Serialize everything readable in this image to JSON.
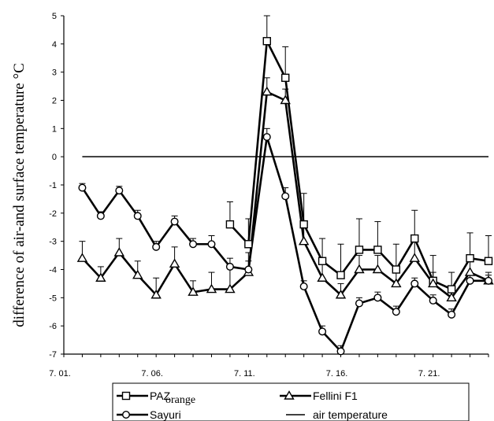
{
  "chart_data": {
    "type": "line",
    "xlabel": "",
    "ylabel": "difference of air-and surface temperature °C",
    "ylim": [
      -7,
      5
    ],
    "yticks": [
      "5",
      "4",
      "3",
      "2",
      "1",
      "0",
      "-1",
      "-2",
      "-3",
      "-4",
      "-5",
      "-6",
      "-7"
    ],
    "x_range": [
      "7.01",
      "7.24"
    ],
    "xticks": [
      {
        "label": "7. 01.",
        "x": "7.01"
      },
      {
        "label": "7. 06.",
        "x": "7.06"
      },
      {
        "label": "7. 11.",
        "x": "7.11"
      },
      {
        "label": "7. 16.",
        "x": "7.16"
      },
      {
        "label": "7. 21.",
        "x": "7.21"
      }
    ],
    "grid": false,
    "legend": "bottom",
    "series": [
      {
        "name": "PAZ",
        "name_note": "orange",
        "marker": "square",
        "x": [
          "7.10",
          "7.11",
          "7.12",
          "7.13",
          "7.14",
          "7.15",
          "7.16",
          "7.17",
          "7.18",
          "7.19",
          "7.20",
          "7.21",
          "7.22",
          "7.23",
          "7.24"
        ],
        "y": [
          -2.4,
          -3.1,
          4.1,
          2.8,
          -2.4,
          -3.7,
          -4.2,
          -3.3,
          -3.3,
          -4.0,
          -2.9,
          -4.4,
          -4.7,
          -3.6,
          -3.7
        ],
        "error": [
          0.8,
          0.9,
          0.9,
          1.1,
          1.1,
          0.8,
          1.1,
          1.1,
          1.0,
          0.9,
          1.0,
          0.9,
          0.6,
          0.9,
          0.9
        ]
      },
      {
        "name": "Fellini F1",
        "marker": "triangle",
        "x": [
          "7.02",
          "7.03",
          "7.04",
          "7.05",
          "7.06",
          "7.07",
          "7.08",
          "7.09",
          "7.10",
          "7.11",
          "7.12",
          "7.13",
          "7.14",
          "7.15",
          "7.16",
          "7.17",
          "7.18",
          "7.19",
          "7.20",
          "7.21",
          "7.22",
          "7.23",
          "7.24"
        ],
        "y": [
          -3.6,
          -4.3,
          -3.4,
          -4.2,
          -4.9,
          -3.8,
          -4.8,
          -4.7,
          -4.7,
          -4.1,
          2.3,
          2.0,
          -3.0,
          -4.3,
          -4.9,
          -4.0,
          -4.0,
          -4.5,
          -3.6,
          -4.5,
          -5.0,
          -4.1,
          -4.4
        ],
        "error": [
          0.6,
          0.4,
          0.5,
          0.5,
          0.6,
          0.6,
          0.4,
          0.6,
          0.8,
          0.7,
          0.5,
          0.4,
          0.6,
          0.5,
          0.4,
          0.5,
          0.5,
          0.4,
          0.6,
          0.4,
          0.4,
          0.5,
          0.3
        ]
      },
      {
        "name": "Sayuri",
        "marker": "circle",
        "x": [
          "7.02",
          "7.03",
          "7.04",
          "7.05",
          "7.06",
          "7.07",
          "7.08",
          "7.09",
          "7.10",
          "7.11",
          "7.12",
          "7.13",
          "7.14",
          "7.15",
          "7.16",
          "7.17",
          "7.18",
          "7.19",
          "7.20",
          "7.21",
          "7.22",
          "7.23",
          "7.24"
        ],
        "y": [
          -1.1,
          -2.1,
          -1.2,
          -2.1,
          -3.2,
          -2.3,
          -3.1,
          -3.1,
          -3.9,
          -4.0,
          0.7,
          -1.4,
          -4.6,
          -6.2,
          -6.9,
          -5.2,
          -5.0,
          -5.5,
          -4.5,
          -5.1,
          -5.6,
          -4.4,
          -4.4
        ],
        "error": [
          0.15,
          0.15,
          0.15,
          0.2,
          0.2,
          0.2,
          0.2,
          0.3,
          0.3,
          0.3,
          0.3,
          0.3,
          0.2,
          0.2,
          0.2,
          0.2,
          0.2,
          0.2,
          0.2,
          0.2,
          0.2,
          0.2,
          0.2
        ]
      },
      {
        "name": "air temperature",
        "marker": "none",
        "x": [
          "7.02",
          "7.24"
        ],
        "y": [
          0,
          0
        ]
      }
    ],
    "legend_entries": [
      {
        "name": "PAZ",
        "extra": "orange",
        "marker": "square"
      },
      {
        "name": "Fellini F1",
        "marker": "triangle"
      },
      {
        "name": "Sayuri",
        "marker": "circle"
      },
      {
        "name": "air temperature",
        "marker": "none"
      }
    ],
    "colors": {
      "line": "#000000",
      "marker_fill": "#ffffff",
      "background": "#ffffff"
    }
  }
}
